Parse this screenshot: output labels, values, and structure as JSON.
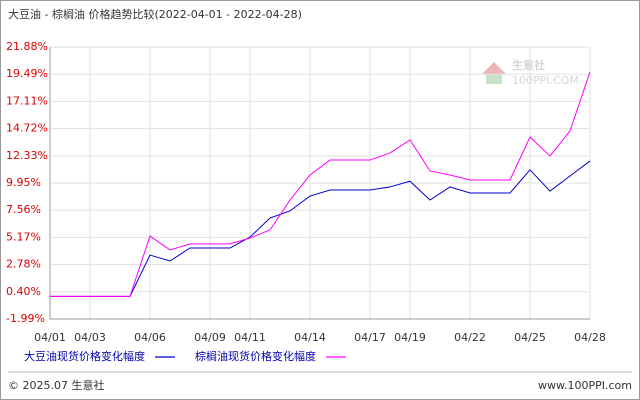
{
  "chart_data": {
    "type": "line",
    "title": "大豆油 - 棕榈油 价格趋势比较(2022-04-01 - 2022-04-28)",
    "categories": [
      "04/01",
      null,
      "04/03",
      null,
      null,
      "04/06",
      null,
      null,
      "04/09",
      null,
      "04/11",
      null,
      null,
      "04/14",
      null,
      null,
      "04/17",
      null,
      "04/19",
      null,
      null,
      "04/22",
      null,
      null,
      "04/25",
      null,
      null,
      "04/28"
    ],
    "series": [
      {
        "name": "大豆油现货价格变化幅度",
        "color": "#0000cc",
        "values": [
          0,
          0,
          0,
          0,
          0,
          3.62,
          3.1,
          4.24,
          4.24,
          4.24,
          5.2,
          6.87,
          7.5,
          8.8,
          9.33,
          9.33,
          9.33,
          9.6,
          10.1,
          8.45,
          9.6,
          9.07,
          9.07,
          9.07,
          11.1,
          9.24,
          10.56,
          11.88
        ]
      },
      {
        "name": "棕榈油现货价格变化幅度",
        "color": "#ff00ff",
        "values": [
          0,
          0,
          0,
          0,
          0,
          5.29,
          4.07,
          4.6,
          4.6,
          4.6,
          5.12,
          5.82,
          8.45,
          10.65,
          11.96,
          11.96,
          11.96,
          12.58,
          13.72,
          11.0,
          10.65,
          10.21,
          10.21,
          10.21,
          13.98,
          12.31,
          14.51,
          19.69
        ]
      }
    ],
    "ylim": [
      -1.99,
      21.88
    ],
    "yticks": [
      {
        "value": 21.88,
        "label": "21.88%"
      },
      {
        "value": 19.49,
        "label": "19.49%"
      },
      {
        "value": 17.11,
        "label": "17.11%"
      },
      {
        "value": 14.72,
        "label": "14.72%"
      },
      {
        "value": 12.33,
        "label": "12.33%"
      },
      {
        "value": 9.95,
        "label": "9.95%"
      },
      {
        "value": 7.56,
        "label": "7.56%"
      },
      {
        "value": 5.17,
        "label": "5.17%"
      },
      {
        "value": 2.78,
        "label": "2.78%"
      },
      {
        "value": 0.4,
        "label": "0.40%"
      },
      {
        "value": -1.99,
        "label": "-1.99%"
      }
    ],
    "grid": true
  },
  "watermark": {
    "name": "生意社",
    "site": "100PPI.COM"
  },
  "footer": {
    "copyright": "© 2025.07 生意社",
    "site": "www.100PPI.com"
  }
}
